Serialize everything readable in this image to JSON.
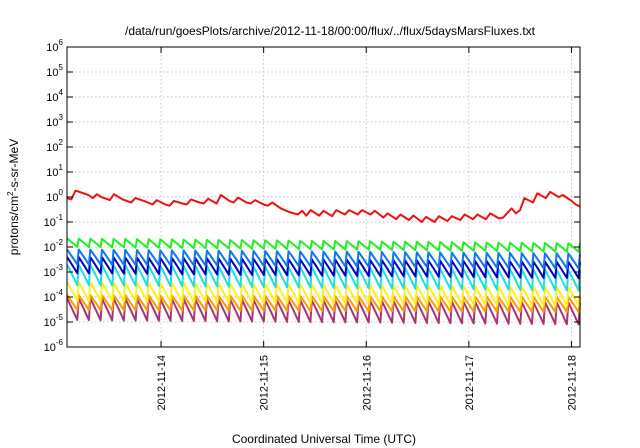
{
  "chart_data": {
    "type": "line",
    "title": "/data/run/goesPlots/archive/2012-11-18/00:00/flux/../flux/5daysMarsFluxes.txt",
    "xlabel": "Coordinated Universal Time (UTC)",
    "ylabel_parts": [
      "protons/cm",
      "2",
      "-s-sr-MeV"
    ],
    "y_scale": "log",
    "ylim": [
      1e-06,
      1000000.0
    ],
    "xlim": [
      "2012-11-13T02:00",
      "2012-11-18T02:00"
    ],
    "grid": true,
    "x_ticks": [
      "2012-11-14",
      "2012-11-15",
      "2012-11-16",
      "2012-11-17",
      "2012-11-18"
    ],
    "y_ticks": [
      {
        "base": "10",
        "exp": "-6"
      },
      {
        "base": "10",
        "exp": "-5"
      },
      {
        "base": "10",
        "exp": "-4"
      },
      {
        "base": "10",
        "exp": "-3"
      },
      {
        "base": "10",
        "exp": "-2"
      },
      {
        "base": "10",
        "exp": "-1"
      },
      {
        "base": "10",
        "exp": "0"
      },
      {
        "base": "10",
        "exp": "1"
      },
      {
        "base": "10",
        "exp": "2"
      },
      {
        "base": "10",
        "exp": "3"
      },
      {
        "base": "10",
        "exp": "4"
      },
      {
        "base": "10",
        "exp": "5"
      },
      {
        "base": "10",
        "exp": "6"
      }
    ],
    "series": [
      {
        "color": "#ee1111",
        "points": [
          [
            "2012-11-13T02:00",
            0.9
          ],
          [
            "2012-11-13T03:00",
            0.8
          ],
          [
            "2012-11-13T04:00",
            1.8
          ],
          [
            "2012-11-13T07:00",
            1.2
          ],
          [
            "2012-11-13T08:00",
            0.9
          ],
          [
            "2012-11-13T09:00",
            1.3
          ],
          [
            "2012-11-13T10:00",
            1.0
          ],
          [
            "2012-11-13T12:00",
            0.75
          ],
          [
            "2012-11-13T13:00",
            1.3
          ],
          [
            "2012-11-13T15:00",
            0.8
          ],
          [
            "2012-11-13T17:00",
            0.6
          ],
          [
            "2012-11-13T18:00",
            0.9
          ],
          [
            "2012-11-13T20:00",
            0.7
          ],
          [
            "2012-11-13T22:00",
            0.5
          ],
          [
            "2012-11-13T23:00",
            0.75
          ],
          [
            "2012-11-14T01:00",
            0.5
          ],
          [
            "2012-11-14T02:00",
            0.45
          ],
          [
            "2012-11-14T03:00",
            0.7
          ],
          [
            "2012-11-14T05:00",
            0.55
          ],
          [
            "2012-11-14T06:00",
            0.5
          ],
          [
            "2012-11-14T07:00",
            0.8
          ],
          [
            "2012-11-14T09:00",
            0.6
          ],
          [
            "2012-11-14T10:00",
            0.55
          ],
          [
            "2012-11-14T11:00",
            0.85
          ],
          [
            "2012-11-14T13:00",
            0.55
          ],
          [
            "2012-11-14T14:00",
            1.2
          ],
          [
            "2012-11-14T16:00",
            0.7
          ],
          [
            "2012-11-14T17:00",
            0.6
          ],
          [
            "2012-11-14T18:00",
            0.95
          ],
          [
            "2012-11-14T20:00",
            0.6
          ],
          [
            "2012-11-14T21:00",
            0.55
          ],
          [
            "2012-11-14T22:00",
            0.75
          ],
          [
            "2012-11-15T00:00",
            0.5
          ],
          [
            "2012-11-15T01:00",
            0.45
          ],
          [
            "2012-11-15T02:00",
            0.6
          ],
          [
            "2012-11-15T04:00",
            0.35
          ],
          [
            "2012-11-15T06:00",
            0.25
          ],
          [
            "2012-11-15T08:00",
            0.2
          ],
          [
            "2012-11-15T09:00",
            0.28
          ],
          [
            "2012-11-15T10:00",
            0.18
          ],
          [
            "2012-11-15T11:00",
            0.3
          ],
          [
            "2012-11-15T13:00",
            0.18
          ],
          [
            "2012-11-15T14:00",
            0.28
          ],
          [
            "2012-11-15T16:00",
            0.17
          ],
          [
            "2012-11-15T17:00",
            0.3
          ],
          [
            "2012-11-15T19:00",
            0.2
          ],
          [
            "2012-11-15T20:00",
            0.3
          ],
          [
            "2012-11-15T22:00",
            0.2
          ],
          [
            "2012-11-15T23:00",
            0.3
          ],
          [
            "2012-11-16T01:00",
            0.2
          ],
          [
            "2012-11-16T02:00",
            0.28
          ],
          [
            "2012-11-16T04:00",
            0.15
          ],
          [
            "2012-11-16T05:00",
            0.22
          ],
          [
            "2012-11-16T07:00",
            0.13
          ],
          [
            "2012-11-16T08:00",
            0.2
          ],
          [
            "2012-11-16T10:00",
            0.12
          ],
          [
            "2012-11-16T11:00",
            0.18
          ],
          [
            "2012-11-16T13:00",
            0.1
          ],
          [
            "2012-11-16T14:00",
            0.16
          ],
          [
            "2012-11-16T16:00",
            0.1
          ],
          [
            "2012-11-16T17:00",
            0.17
          ],
          [
            "2012-11-16T19:00",
            0.11
          ],
          [
            "2012-11-16T20:00",
            0.17
          ],
          [
            "2012-11-16T22:00",
            0.12
          ],
          [
            "2012-11-16T23:00",
            0.2
          ],
          [
            "2012-11-17T01:00",
            0.13
          ],
          [
            "2012-11-17T02:00",
            0.2
          ],
          [
            "2012-11-17T04:00",
            0.13
          ],
          [
            "2012-11-17T05:00",
            0.22
          ],
          [
            "2012-11-17T07:00",
            0.14
          ],
          [
            "2012-11-17T08:00",
            0.15
          ],
          [
            "2012-11-17T10:00",
            0.35
          ],
          [
            "2012-11-17T11:00",
            0.22
          ],
          [
            "2012-11-17T12:00",
            0.3
          ],
          [
            "2012-11-17T13:00",
            0.9
          ],
          [
            "2012-11-17T15:00",
            0.6
          ],
          [
            "2012-11-17T16:00",
            1.4
          ],
          [
            "2012-11-17T18:00",
            0.9
          ],
          [
            "2012-11-17T19:00",
            1.6
          ],
          [
            "2012-11-17T21:00",
            1.0
          ],
          [
            "2012-11-17T22:00",
            1.2
          ],
          [
            "2012-11-18T00:00",
            0.7
          ],
          [
            "2012-11-18T01:00",
            0.5
          ],
          [
            "2012-11-18T02:00",
            0.42
          ]
        ]
      },
      {
        "color": "#22ee22",
        "sawtooth": {
          "peak": 0.022,
          "trough": 0.01,
          "peak_end": 0.014
        }
      },
      {
        "color": "#1177ee",
        "sawtooth": {
          "peak": 0.008,
          "trough": 0.002,
          "peak_end": 0.0055
        }
      },
      {
        "color": "#0000bb",
        "sawtooth": {
          "peak": 0.004,
          "trough": 0.0009,
          "peak_end": 0.0025
        }
      },
      {
        "color": "#22dddd",
        "sawtooth": {
          "peak": 0.002,
          "trough": 0.0003,
          "peak_end": 0.0012
        }
      },
      {
        "color": "#ffee22",
        "sawtooth": {
          "peak": 0.0004,
          "trough": 7e-05,
          "peak_end": 0.00025
        }
      },
      {
        "color": "#ff9900",
        "sawtooth": {
          "peak": 0.00012,
          "trough": 3e-05,
          "peak_end": 0.0001
        }
      },
      {
        "color": "#aa3377",
        "sawtooth": {
          "peak": 9e-05,
          "trough": 1.2e-05,
          "peak_end": 6e-05
        }
      }
    ],
    "sawtooth_cycles": 44
  }
}
